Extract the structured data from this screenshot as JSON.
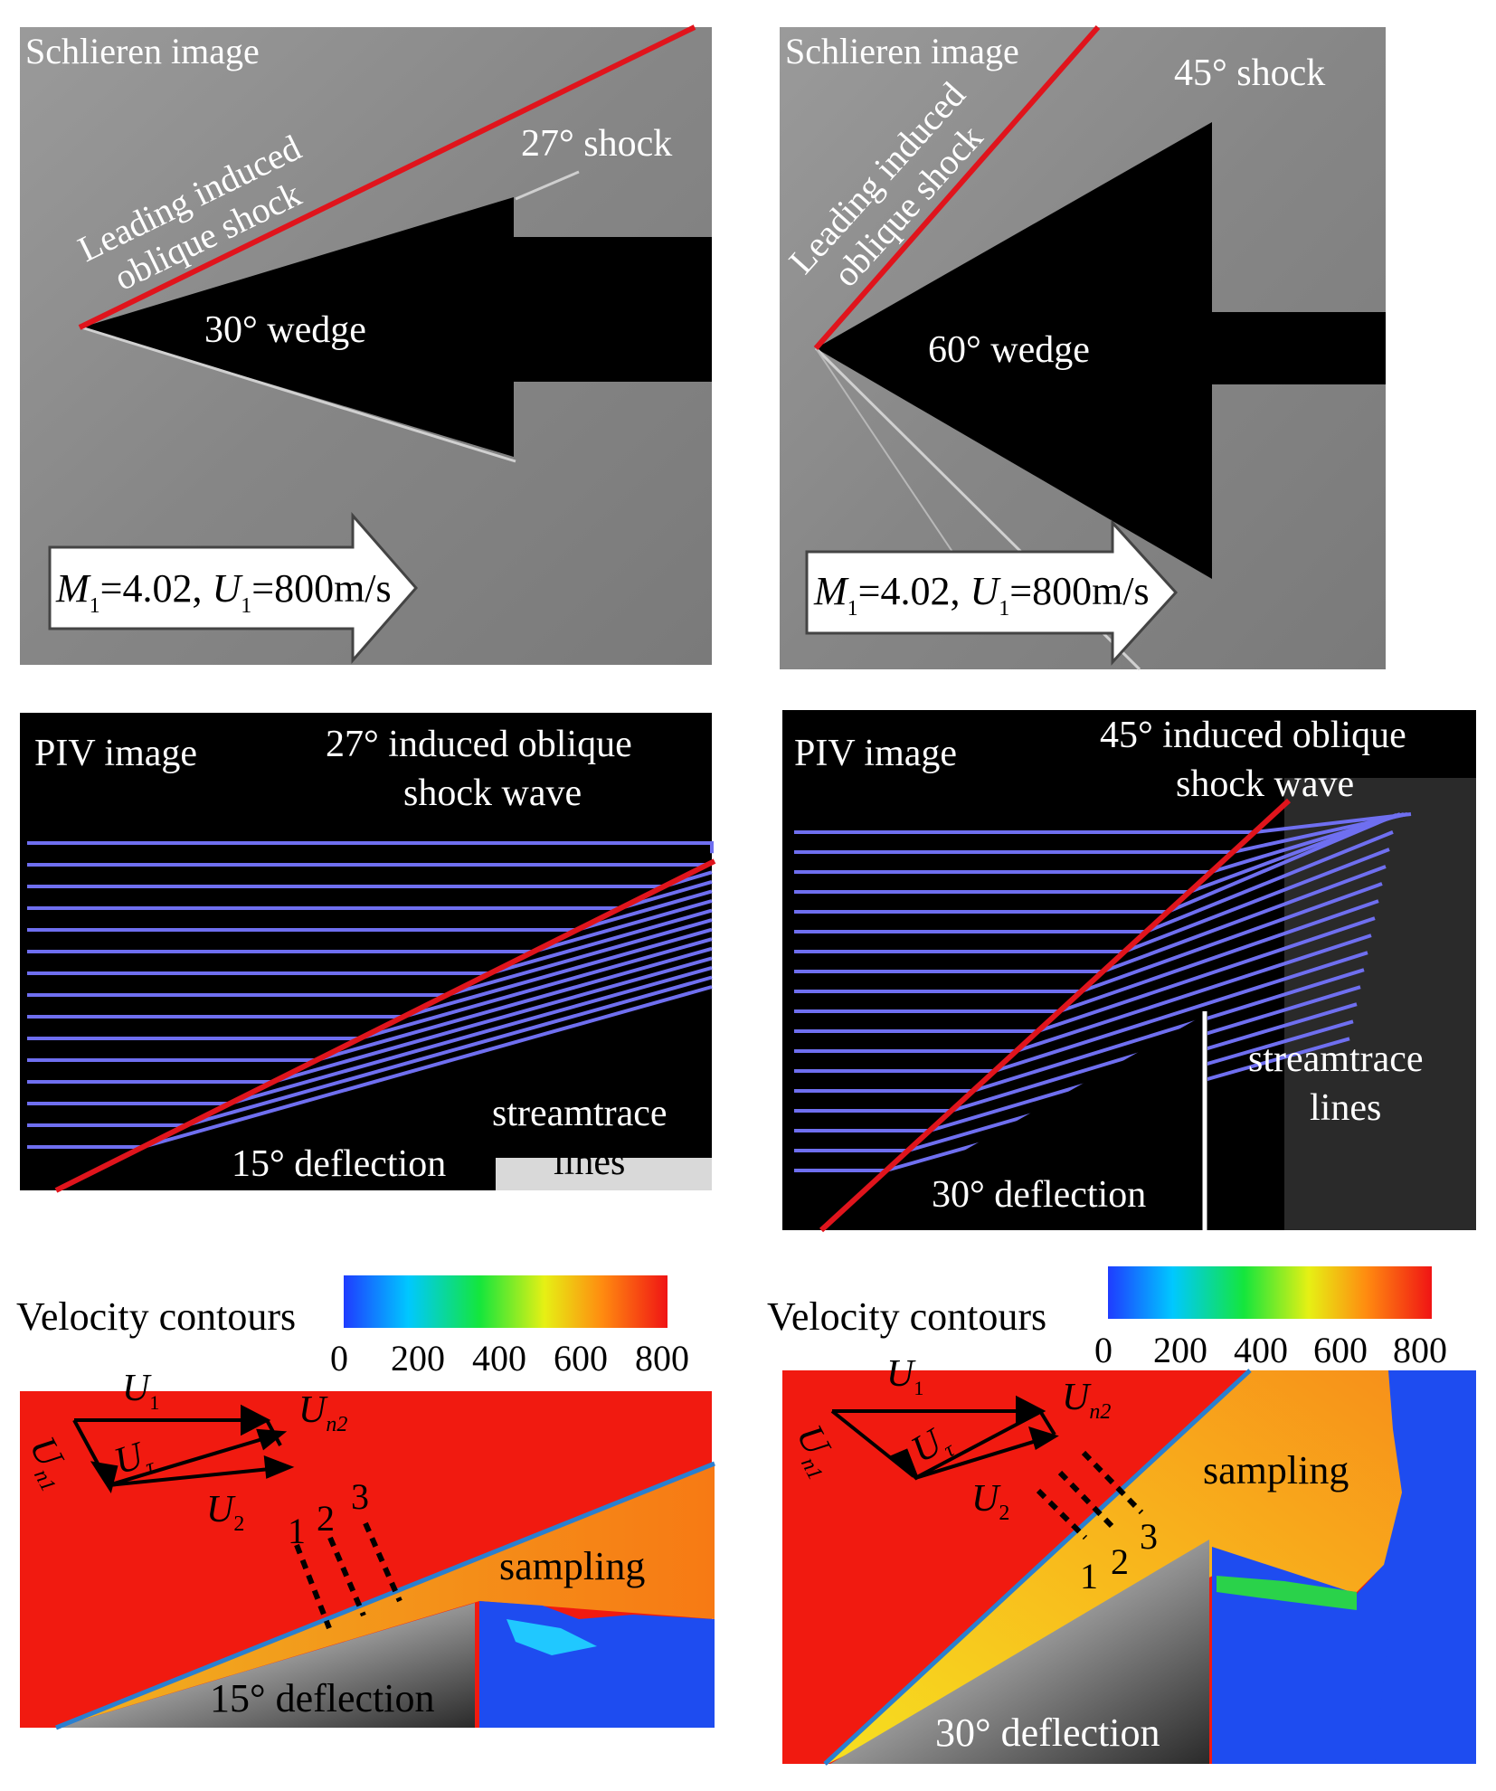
{
  "schlieren": [
    {
      "title": "Schlieren image",
      "shock_label_line1": "Leading induced",
      "shock_label_line2": "oblique shock",
      "shock_angle_label": "27° shock",
      "wedge_label": "30° wedge",
      "flow_M": "M",
      "flow_sub1": "1",
      "flow_M_value": "=4.02, ",
      "flow_U": "U",
      "flow_sub2": "1",
      "flow_U_value": "=800m/s"
    },
    {
      "title": "Schlieren image",
      "shock_label_line1": "Leading induced",
      "shock_label_line2": "oblique shock",
      "shock_angle_label": "45° shock",
      "wedge_label": "60° wedge",
      "flow_M": "M",
      "flow_sub1": "1",
      "flow_M_value": "=4.02, ",
      "flow_U": "U",
      "flow_sub2": "1",
      "flow_U_value": "=800m/s"
    }
  ],
  "piv": [
    {
      "title": "PIV image",
      "shock_line1": "27° induced oblique",
      "shock_line2": "shock wave",
      "stream_line1": "streamtrace",
      "stream_line2": "lines",
      "deflection": "15° deflection"
    },
    {
      "title": "PIV image",
      "shock_line1": "45° induced oblique",
      "shock_line2": "shock wave",
      "stream_line1": "streamtrace",
      "stream_line2": "lines",
      "deflection": "30° deflection"
    }
  ],
  "contours": [
    {
      "title": "Velocity contours",
      "colorbar_ticks": [
        "0",
        "200",
        "400",
        "600",
        "800"
      ],
      "vec_U1": "U",
      "vec_U1_sub": "1",
      "vec_Un2": "U",
      "vec_Un2_sub": "n2",
      "vec_Un1": "U",
      "vec_Un1_sub": "n1",
      "vec_Ut": "U",
      "vec_Ut_sub": "τ",
      "vec_U2": "U",
      "vec_U2_sub": "2",
      "sample_ids": [
        "1",
        "2",
        "3"
      ],
      "sampling_label": "sampling",
      "deflection": "15° deflection"
    },
    {
      "title": "Velocity contours",
      "colorbar_ticks": [
        "0",
        "200",
        "400",
        "600",
        "800"
      ],
      "vec_U1": "U",
      "vec_U1_sub": "1",
      "vec_Un2": "U",
      "vec_Un2_sub": "n2",
      "vec_Un1": "U",
      "vec_Un1_sub": "n1",
      "vec_Ut": "U",
      "vec_Ut_sub": "τ",
      "vec_U2": "U",
      "vec_U2_sub": "2",
      "sample_ids": [
        "1",
        "2",
        "3"
      ],
      "sampling_label": "sampling",
      "deflection": "30° deflection"
    }
  ],
  "colors": {
    "shock_red": "#e0141c",
    "shock_blue": "#2a7fd0",
    "piv_blue": "#6f6ff0",
    "contour_red": "#f11a10",
    "schlieren_gray": "#8a8a8a"
  }
}
